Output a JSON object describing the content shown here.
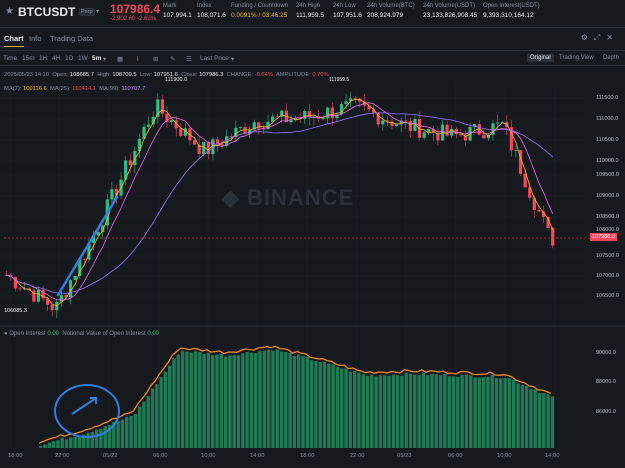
{
  "header": {
    "symbol": "BTCUSDT",
    "contract_type": "Perp",
    "last_price": "107986.4",
    "change": "-2,902.60 -2.62%",
    "stats": [
      {
        "label": "Mark",
        "value": "107,994.1"
      },
      {
        "label": "Index",
        "value": "108,071.6"
      },
      {
        "label": "Funding / Countdown",
        "value": "0.0091% / 03:46:25"
      },
      {
        "label": "24h High",
        "value": "111,959.5"
      },
      {
        "label": "24h Low",
        "value": "107,951.6"
      },
      {
        "label": "24h Volume(BTC)",
        "value": "208,924.979"
      },
      {
        "label": "24h Volume(USDT)",
        "value": "23,133,826,908.45"
      },
      {
        "label": "Open Interest(USDT)",
        "value": "9,393,310,164.12"
      }
    ]
  },
  "tabs": [
    "Chart",
    "Info",
    "Trading Data"
  ],
  "views": [
    "Original",
    "Trading View",
    "Depth"
  ],
  "toolbar": {
    "intervals": [
      "Time",
      "15m",
      "1H",
      "4H",
      "1D",
      "1W",
      "5m"
    ],
    "active_interval": "5m",
    "price_type": "Last Price"
  },
  "ohlc": {
    "date": "2025/05/23 14:10",
    "open_label": "Open:",
    "open": "108685.7",
    "high_label": "High:",
    "high": "108709.5",
    "low_label": "Low:",
    "low": "107951.6",
    "close_label": "Close:",
    "close": "107986.3",
    "change_label": "CHANGE:",
    "change": "-0.64%",
    "amplitude_label": "AMPLITUDE:",
    "amplitude": "0.70%"
  },
  "ma": {
    "ma7_label": "MA(7):",
    "ma7": "109116.6",
    "ma25_label": "MA(25):",
    "ma25": "110414.1",
    "ma99_label": "MA(99):",
    "ma99": "110707.7"
  },
  "price_axis": [
    "111500.0",
    "111000.0",
    "110500.0",
    "110000.0",
    "109500.0",
    "109000.0",
    "108500.0",
    "108000.0",
    "107500.0",
    "107000.0",
    "106500.0"
  ],
  "current_price_tag": "107986.3",
  "watermark": "BINANCE",
  "low_marker": "106085.3",
  "high_marker": "111900.0",
  "high_marker2": "111959.5",
  "open_interest": {
    "label": "Open Interest",
    "value": "0.00",
    "notional_label": "Notional Value of Open Interest",
    "notional_value": "0.00",
    "axis": [
      "90000.0",
      "88000.0",
      "86000.0"
    ]
  },
  "time_axis": [
    "18:00",
    "22:00",
    "05/22",
    "06:00",
    "10:00",
    "14:00",
    "18:00",
    "22:00",
    "05/23",
    "06:00",
    "10:00",
    "14:00"
  ],
  "chart_data": {
    "type": "candlestick",
    "ylim": [
      106000,
      112000
    ],
    "x": [
      "18:00",
      "22:00",
      "05/22",
      "06:00",
      "10:00",
      "14:00",
      "18:00",
      "22:00",
      "05/23",
      "06:00",
      "10:00",
      "14:00"
    ],
    "close_trend": [
      107200,
      106300,
      108900,
      111700,
      110500,
      111300,
      111400,
      111700,
      111200,
      110900,
      111200,
      107986
    ],
    "open_interest_trend": [
      84400,
      85200,
      86300,
      90500,
      90200,
      90600,
      89800,
      88900,
      89000,
      88900,
      88800,
      87500
    ],
    "oi_ylim": [
      84000,
      91000
    ],
    "colors": {
      "up": "#2ebd85",
      "down": "#f6465d",
      "ma7": "#f0b90b",
      "ma25": "#e96ae6",
      "ma99": "#9b75ff",
      "oi_line": "#f0871e",
      "oi_fill": "#1f7b57"
    }
  }
}
